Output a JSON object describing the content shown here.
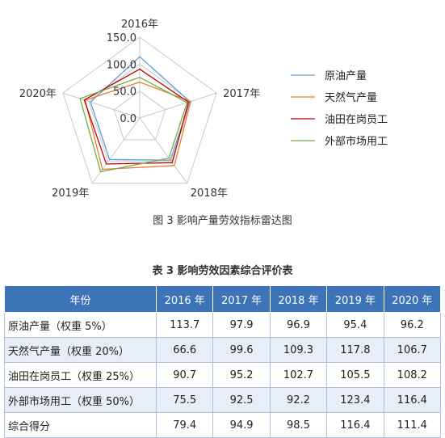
{
  "figure": {
    "caption": "图 3   影响产量劳效指标雷达图",
    "chart_data": {
      "type": "radar",
      "axes": [
        "2016年",
        "2017年",
        "2018年",
        "2019年",
        "2020年"
      ],
      "tick_labels": [
        "0.0",
        "50.0",
        "100.0",
        "150.0"
      ],
      "ticks": [
        0,
        50,
        100,
        150
      ],
      "range": [
        0,
        150
      ],
      "legend_position": "right",
      "series": [
        {
          "name": "原油产量",
          "color": "#5b9bd5",
          "values": [
            113.7,
            97.9,
            96.9,
            95.4,
            96.2
          ]
        },
        {
          "name": "天然气产量",
          "color": "#ed7d31",
          "values": [
            66.6,
            99.6,
            109.3,
            117.8,
            106.7
          ]
        },
        {
          "name": "油田在岗员工",
          "color": "#c00000",
          "values": [
            90.7,
            95.2,
            102.7,
            105.5,
            108.2
          ]
        },
        {
          "name": "外部市场用工",
          "color": "#70ad47",
          "values": [
            75.5,
            92.5,
            92.2,
            123.4,
            116.4
          ]
        }
      ]
    }
  },
  "table": {
    "caption": "表 3   影响劳效因素综合评价表",
    "headers": [
      "年份",
      "2016 年",
      "2017 年",
      "2018 年",
      "2019 年",
      "2020 年"
    ],
    "rows": [
      [
        "原油产量（权重 5%）",
        "113.7",
        "97.9",
        "96.9",
        "95.4",
        "96.2"
      ],
      [
        "天然气产量（权重 20%）",
        "66.6",
        "99.6",
        "109.3",
        "117.8",
        "106.7"
      ],
      [
        "油田在岗员工（权重 25%）",
        "90.7",
        "95.2",
        "102.7",
        "105.5",
        "108.2"
      ],
      [
        "外部市场用工（权重 50%）",
        "75.5",
        "92.5",
        "92.2",
        "123.4",
        "116.4"
      ],
      [
        "综合得分",
        "79.4",
        "94.9",
        "98.5",
        "116.4",
        "111.4"
      ]
    ]
  }
}
